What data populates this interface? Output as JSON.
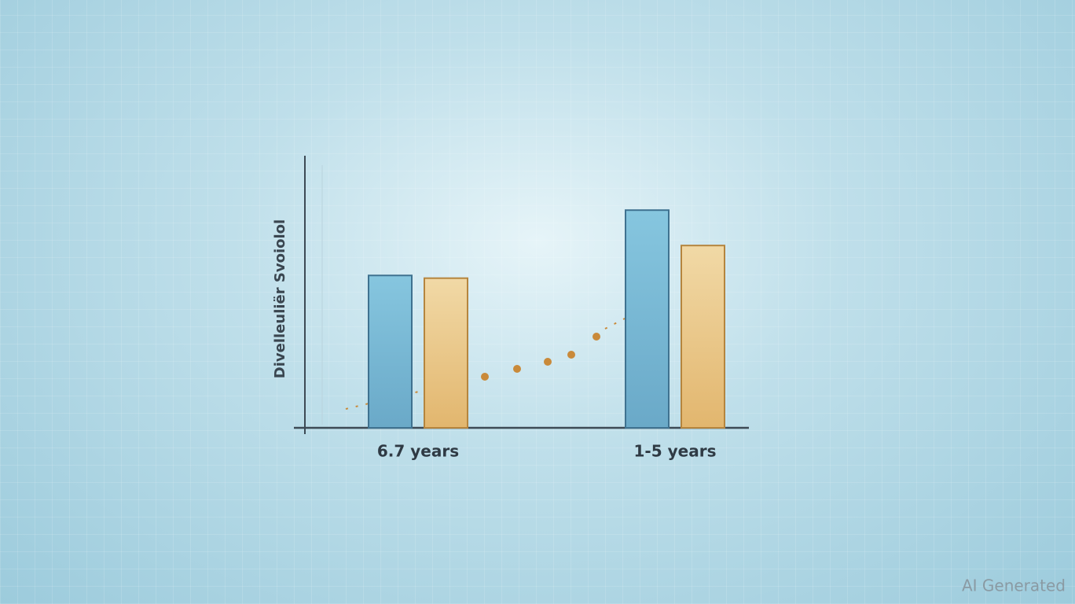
{
  "chart_data": {
    "type": "bar",
    "ylabel": "Divelleuliër Svoiolol",
    "categories": [
      "6.7 years",
      "1-5 years"
    ],
    "series": [
      {
        "color": "#7bbcd8",
        "values": [
          56,
          80
        ]
      },
      {
        "color": "#e8c17a",
        "values": [
          55,
          67
        ]
      }
    ],
    "ylim": [
      0,
      100
    ]
  },
  "watermark": "AI Generated"
}
